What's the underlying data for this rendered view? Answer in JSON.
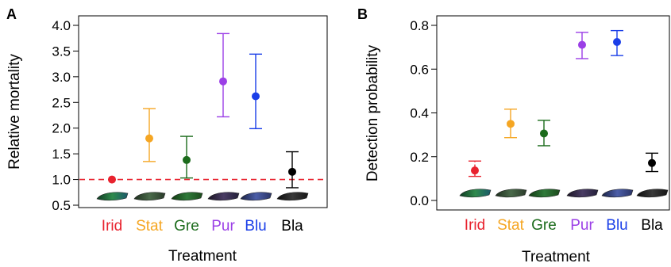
{
  "figure": {
    "panel_count": 2
  },
  "chart_data": [
    {
      "panel_label": "A",
      "type": "scatter",
      "title": "",
      "xlabel": "Treatment",
      "ylabel": "Relative mortality",
      "categories": [
        "Irid",
        "Stat",
        "Gre",
        "Pur",
        "Blu",
        "Bla"
      ],
      "category_colors": [
        "#e8222e",
        "#f5a623",
        "#1b6b1b",
        "#9b3fe6",
        "#1a3ee8",
        "#000000"
      ],
      "values": [
        1.0,
        1.8,
        1.38,
        2.91,
        2.62,
        1.15
      ],
      "ci_lower": [
        null,
        1.35,
        1.03,
        2.22,
        1.99,
        0.84
      ],
      "ci_upper": [
        null,
        2.38,
        1.84,
        3.84,
        3.44,
        1.54
      ],
      "ylim": [
        0.5,
        4.0
      ],
      "yticks": [
        0.5,
        1.0,
        1.5,
        2.0,
        2.5,
        3.0,
        3.5,
        4.0
      ],
      "ytick_labels": [
        "0.5",
        "1.0",
        "1.5",
        "2.0",
        "2.5",
        "3.0",
        "3.5",
        "4.0"
      ],
      "reference_line": {
        "y": 1.0,
        "color": "#e8222e",
        "style": "dashed"
      },
      "wing_icons": true,
      "grid": false
    },
    {
      "panel_label": "B",
      "type": "scatter",
      "title": "",
      "xlabel": "Treatment",
      "ylabel": "Detection probability",
      "categories": [
        "Irid",
        "Stat",
        "Gre",
        "Pur",
        "Blu",
        "Bla"
      ],
      "category_colors": [
        "#e8222e",
        "#f5a623",
        "#1b6b1b",
        "#9b3fe6",
        "#1a3ee8",
        "#000000"
      ],
      "values": [
        0.137,
        0.35,
        0.306,
        0.711,
        0.724,
        0.171
      ],
      "ci_lower": [
        0.11,
        0.287,
        0.25,
        0.648,
        0.662,
        0.132
      ],
      "ci_upper": [
        0.18,
        0.417,
        0.366,
        0.768,
        0.776,
        0.216
      ],
      "ci_dashed": [
        true,
        false,
        false,
        false,
        false,
        false
      ],
      "ylim": [
        0.0,
        0.8
      ],
      "yticks": [
        0.0,
        0.2,
        0.4,
        0.6,
        0.8
      ],
      "ytick_labels": [
        "0.0",
        "0.2",
        "0.4",
        "0.6",
        "0.8"
      ],
      "wing_icons": true,
      "grid": false
    }
  ]
}
